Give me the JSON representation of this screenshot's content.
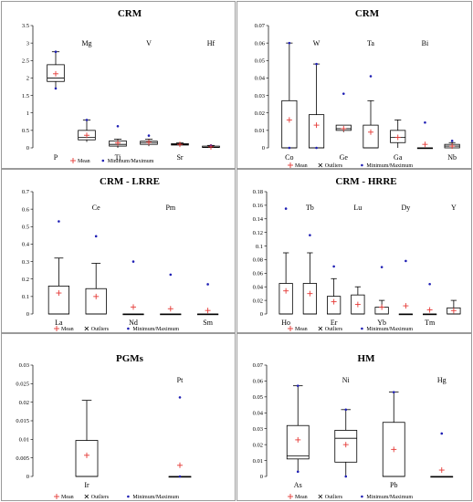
{
  "chart_data": [
    {
      "type": "box",
      "title": "CRM",
      "ylim": [
        0,
        3.5
      ],
      "yticks": [
        0,
        0.5,
        1,
        1.5,
        2,
        2.5,
        3,
        3.5
      ],
      "legend": [
        "Mean",
        "Minimum/Maximum"
      ],
      "boxes": [
        {
          "label": "P",
          "label_pos": "bottom",
          "min": 1.7,
          "q1": 1.9,
          "median": 2.0,
          "q3": 2.38,
          "max": 2.75,
          "mean": 2.12,
          "outliers": [],
          "minmax_marks": [
            1.7,
            2.75
          ]
        },
        {
          "label": "Mg",
          "label_pos": "top",
          "min": 0.17,
          "q1": 0.23,
          "median": 0.3,
          "q3": 0.5,
          "max": 0.8,
          "mean": 0.36,
          "outliers": [],
          "minmax_marks": [
            0.8
          ]
        },
        {
          "label": "Ti",
          "label_pos": "bottom",
          "min": 0.0,
          "q1": 0.05,
          "median": 0.1,
          "q3": 0.2,
          "max": 0.25,
          "mean": 0.14,
          "outliers": [],
          "minmax_marks": [
            0.62
          ]
        },
        {
          "label": "V",
          "label_pos": "top",
          "min": 0.05,
          "q1": 0.1,
          "median": 0.15,
          "q3": 0.19,
          "max": 0.25,
          "mean": 0.16,
          "outliers": [],
          "minmax_marks": [
            0.35
          ]
        },
        {
          "label": "Sr",
          "label_pos": "bottom",
          "min": 0.05,
          "q1": 0.08,
          "median": 0.1,
          "q3": 0.12,
          "max": 0.14,
          "mean": 0.1,
          "outliers": [],
          "minmax_marks": []
        },
        {
          "label": "Hf",
          "label_pos": "top",
          "min": 0.0,
          "q1": 0.01,
          "median": 0.02,
          "q3": 0.05,
          "max": 0.07,
          "mean": 0.03,
          "outliers": [],
          "minmax_marks": [
            0.07
          ]
        }
      ]
    },
    {
      "type": "box",
      "title": "CRM",
      "ylim": [
        0,
        0.07
      ],
      "yticks": [
        0,
        0.01,
        0.02,
        0.03,
        0.04,
        0.05,
        0.06,
        0.07
      ],
      "legend": [
        "Mean",
        "Outliers",
        "Minimum/Maximum"
      ],
      "boxes": [
        {
          "label": "Co",
          "label_pos": "bottom",
          "min": 0.0,
          "q1": 0.0,
          "median": 0.0,
          "q3": 0.027,
          "max": 0.06,
          "mean": 0.016,
          "outliers": [],
          "minmax_marks": [
            0.06,
            0.0
          ]
        },
        {
          "label": "W",
          "label_pos": "top",
          "min": 0.0,
          "q1": 0.0,
          "median": 0.0,
          "q3": 0.019,
          "max": 0.048,
          "mean": 0.013,
          "outliers": [],
          "minmax_marks": [
            0.048,
            0.0
          ]
        },
        {
          "label": "Ge",
          "label_pos": "bottom",
          "min": 0.009,
          "q1": 0.01,
          "median": 0.011,
          "q3": 0.013,
          "max": 0.013,
          "mean": 0.011,
          "outliers": [],
          "minmax_marks": [
            0.031
          ]
        },
        {
          "label": "Ta",
          "label_pos": "top",
          "min": 0.0,
          "q1": 0.0,
          "median": 0.0,
          "q3": 0.013,
          "max": 0.027,
          "mean": 0.009,
          "outliers": [],
          "minmax_marks": [
            0.041
          ]
        },
        {
          "label": "Ga",
          "label_pos": "bottom",
          "min": 0.0,
          "q1": 0.003,
          "median": 0.006,
          "q3": 0.01,
          "max": 0.016,
          "mean": 0.006,
          "outliers": [],
          "minmax_marks": []
        },
        {
          "label": "Bi",
          "label_pos": "top",
          "min": 0.0,
          "q1": 0.0,
          "median": 0.0,
          "q3": 0.0,
          "max": 0.0,
          "mean": 0.002,
          "outliers": [],
          "minmax_marks": [
            0.0145
          ]
        },
        {
          "label": "Nb",
          "label_pos": "bottom",
          "min": 0.0,
          "q1": 0.0,
          "median": 0.001,
          "q3": 0.002,
          "max": 0.003,
          "mean": 0.001,
          "outliers": [],
          "minmax_marks": [
            0.004
          ]
        }
      ]
    },
    {
      "type": "box",
      "title": "CRM - LRRE",
      "ylim": [
        0,
        0.7
      ],
      "yticks": [
        0,
        0.1,
        0.2,
        0.3,
        0.4,
        0.5,
        0.6,
        0.7
      ],
      "legend": [
        "Mean",
        "Outliers",
        "Minimum/Maximum"
      ],
      "boxes": [
        {
          "label": "La",
          "label_pos": "bottom",
          "min": 0.0,
          "q1": 0.0,
          "median": 0.0,
          "q3": 0.16,
          "max": 0.32,
          "mean": 0.12,
          "outliers": [],
          "minmax_marks": [
            0.53
          ]
        },
        {
          "label": "Ce",
          "label_pos": "top",
          "min": 0.0,
          "q1": 0.0,
          "median": 0.0,
          "q3": 0.145,
          "max": 0.29,
          "mean": 0.1,
          "outliers": [],
          "minmax_marks": [
            0.445
          ]
        },
        {
          "label": "Nd",
          "label_pos": "bottom",
          "min": 0.0,
          "q1": 0.0,
          "median": 0.0,
          "q3": 0.0,
          "max": 0.0,
          "mean": 0.04,
          "outliers": [],
          "minmax_marks": [
            0.3
          ]
        },
        {
          "label": "Pm",
          "label_pos": "top",
          "min": 0.0,
          "q1": 0.0,
          "median": 0.0,
          "q3": 0.0,
          "max": 0.0,
          "mean": 0.03,
          "outliers": [],
          "minmax_marks": [
            0.225
          ]
        },
        {
          "label": "Sm",
          "label_pos": "bottom",
          "min": 0.0,
          "q1": 0.0,
          "median": 0.0,
          "q3": 0.0,
          "max": 0.0,
          "mean": 0.02,
          "outliers": [],
          "minmax_marks": [
            0.17
          ]
        }
      ]
    },
    {
      "type": "box",
      "title": "CRM - HRRE",
      "ylim": [
        0,
        0.18
      ],
      "yticks": [
        0,
        0.02,
        0.04,
        0.06,
        0.08,
        0.1,
        0.12,
        0.14,
        0.16,
        0.18
      ],
      "legend": [
        "Mean",
        "Outliers",
        "Minimum/Maximum"
      ],
      "boxes": [
        {
          "label": "Ho",
          "label_pos": "bottom",
          "min": 0.0,
          "q1": 0.0,
          "median": 0.0,
          "q3": 0.045,
          "max": 0.09,
          "mean": 0.034,
          "outliers": [],
          "minmax_marks": [
            0.155
          ]
        },
        {
          "label": "Tb",
          "label_pos": "top",
          "min": 0.0,
          "q1": 0.0,
          "median": 0.0,
          "q3": 0.045,
          "max": 0.09,
          "mean": 0.03,
          "outliers": [],
          "minmax_marks": [
            0.116
          ]
        },
        {
          "label": "Er",
          "label_pos": "bottom",
          "min": 0.0,
          "q1": 0.0,
          "median": 0.0,
          "q3": 0.026,
          "max": 0.052,
          "mean": 0.018,
          "outliers": [],
          "minmax_marks": [
            0.07
          ]
        },
        {
          "label": "Lu",
          "label_pos": "top",
          "min": 0.0,
          "q1": 0.0,
          "median": 0.0,
          "q3": 0.028,
          "max": 0.04,
          "mean": 0.014,
          "outliers": [],
          "minmax_marks": []
        },
        {
          "label": "Yb",
          "label_pos": "bottom",
          "min": 0.0,
          "q1": 0.0,
          "median": 0.0,
          "q3": 0.01,
          "max": 0.02,
          "mean": 0.01,
          "outliers": [],
          "minmax_marks": [
            0.069
          ]
        },
        {
          "label": "Dy",
          "label_pos": "top",
          "min": 0.0,
          "q1": 0.0,
          "median": 0.0,
          "q3": 0.0,
          "max": 0.0,
          "mean": 0.012,
          "outliers": [],
          "minmax_marks": [
            0.078
          ]
        },
        {
          "label": "Tm",
          "label_pos": "bottom",
          "min": 0.0,
          "q1": 0.0,
          "median": 0.0,
          "q3": 0.0,
          "max": 0.0,
          "mean": 0.006,
          "outliers": [],
          "minmax_marks": [
            0.044
          ]
        },
        {
          "label": "Y",
          "label_pos": "top",
          "min": 0.0,
          "q1": 0.0,
          "median": 0.0,
          "q3": 0.009,
          "max": 0.02,
          "mean": 0.005,
          "outliers": [],
          "minmax_marks": []
        }
      ]
    },
    {
      "type": "box",
      "title": "PGMs",
      "ylim": [
        0,
        0.03
      ],
      "yticks": [
        0,
        0.005,
        0.01,
        0.015,
        0.02,
        0.025,
        0.03
      ],
      "legend": [
        "Mean",
        "Outliers",
        "Minimum/Maximum"
      ],
      "boxes": [
        {
          "label": "Ir",
          "label_pos": "bottom",
          "min": 0.0,
          "q1": 0.0,
          "median": 0.0,
          "q3": 0.0097,
          "max": 0.0205,
          "mean": 0.0057,
          "outliers": [],
          "minmax_marks": []
        },
        {
          "label": "Pt",
          "label_pos": "top",
          "min": 0.0,
          "q1": 0.0,
          "median": 0.0,
          "q3": 0.0,
          "max": 0.0,
          "mean": 0.003,
          "outliers": [],
          "minmax_marks": [
            0.0213,
            0.0
          ]
        }
      ]
    },
    {
      "type": "box",
      "title": "HM",
      "ylim": [
        0,
        0.07
      ],
      "yticks": [
        0,
        0.01,
        0.02,
        0.03,
        0.04,
        0.05,
        0.06,
        0.07
      ],
      "legend": [
        "Mean",
        "Outliers",
        "Minimum/Maximum"
      ],
      "boxes": [
        {
          "label": "As",
          "label_pos": "bottom",
          "min": 0.003,
          "q1": 0.011,
          "median": 0.013,
          "q3": 0.032,
          "max": 0.057,
          "mean": 0.023,
          "outliers": [],
          "minmax_marks": [
            0.057,
            0.003
          ]
        },
        {
          "label": "Ni",
          "label_pos": "top",
          "min": 0.0,
          "q1": 0.009,
          "median": 0.024,
          "q3": 0.029,
          "max": 0.042,
          "mean": 0.02,
          "outliers": [],
          "minmax_marks": [
            0.042,
            0.0
          ]
        },
        {
          "label": "Pb",
          "label_pos": "bottom",
          "min": 0.0,
          "q1": 0.0,
          "median": 0.0,
          "q3": 0.034,
          "max": 0.053,
          "mean": 0.017,
          "outliers": [],
          "minmax_marks": [
            0.053
          ]
        },
        {
          "label": "Hg",
          "label_pos": "top",
          "min": 0.0,
          "q1": 0.0,
          "median": 0.0,
          "q3": 0.0,
          "max": 0.0,
          "mean": 0.004,
          "outliers": [],
          "minmax_marks": [
            0.027
          ]
        }
      ]
    }
  ],
  "colors": {
    "mean_marker": "#e53935",
    "minmax_marker": "#1f1fb4",
    "outlier_marker": "#000000",
    "box_stroke": "#000000",
    "frame": "#9a9a9a"
  },
  "icons": {
    "mean": "plus-marker",
    "outliers": "x-marker",
    "minmax": "dot-marker"
  },
  "legend_labels": {
    "mean": "Mean",
    "outliers": "Outliers",
    "minmax": "Minimum/Maximum"
  }
}
